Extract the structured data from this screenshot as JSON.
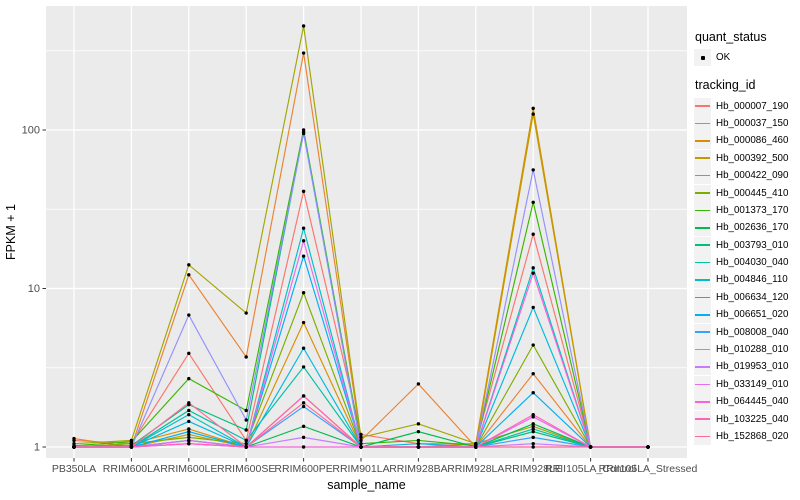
{
  "figure": {
    "background": "#FFFFFF",
    "panel_background": "#EBEBEB",
    "grid_color": "#FFFFFF",
    "axis_text_color": "#4D4D4D",
    "axis_title_color": "#000000",
    "point_color": "#000000",
    "legend_key_background": "#F2F2F2"
  },
  "legend": {
    "quant_status_title": "quant_status",
    "quant_status_items": [
      {
        "label": "OK",
        "shape": "point"
      }
    ],
    "tracking_id_title": "tracking_id"
  },
  "chart_data": {
    "type": "line",
    "title": "",
    "xlabel": "sample_name",
    "ylabel": "FPKM + 1",
    "y_scale": "log10",
    "ylim": [
      1,
      460
    ],
    "grid": true,
    "legend_position": "right",
    "y_ticks": [
      1,
      10,
      100
    ],
    "y_minor_ticks": [
      3.162,
      31.62,
      316.2
    ],
    "categories": [
      "PB350LA",
      "RRIM600LA",
      "RRIM600LE",
      "RRIM600SE",
      "RRIM600PE",
      "RRIM901LA",
      "RRIM928BA",
      "RRIM928LA",
      "RRIM928LE",
      "RRII105LA_Control",
      "RRII105LA_Stressed"
    ],
    "series": [
      {
        "name": "Hb_000007_190",
        "color": "#F8766D",
        "values": [
          1.1,
          1.05,
          3.9,
          1.1,
          41,
          1.2,
          1.05,
          1.05,
          22,
          1.0,
          1.0
        ]
      },
      {
        "name": "Hb_000037_150",
        "color": "#EA8331",
        "values": [
          1.13,
          1.0,
          12.2,
          3.7,
          306,
          1.1,
          2.5,
          1.0,
          2.9,
          1.0,
          1.0
        ]
      },
      {
        "name": "Hb_000086_460",
        "color": "#D89000",
        "values": [
          1.0,
          1.05,
          1.3,
          1.0,
          6.1,
          1.0,
          1.0,
          1.05,
          137,
          1.0,
          1.0
        ]
      },
      {
        "name": "Hb_000392_500",
        "color": "#C09B00",
        "values": [
          1.0,
          1.0,
          1.2,
          1.0,
          2.1,
          1.0,
          1.0,
          1.0,
          126,
          1.0,
          1.0
        ]
      },
      {
        "name": "Hb_000422_090",
        "color": "#A3A500",
        "values": [
          1.05,
          1.1,
          14.1,
          7.0,
          453,
          1.15,
          1.4,
          1.05,
          1.35,
          1.0,
          1.0
        ]
      },
      {
        "name": "Hb_000445_410",
        "color": "#7CAE00",
        "values": [
          1.0,
          1.05,
          1.15,
          1.05,
          9.4,
          1.0,
          1.0,
          1.0,
          4.4,
          1.0,
          1.0
        ]
      },
      {
        "name": "Hb_001373_170",
        "color": "#39B600",
        "values": [
          1.02,
          1.08,
          2.7,
          1.7,
          100,
          1.05,
          1.1,
          1.02,
          35,
          1.0,
          1.0
        ]
      },
      {
        "name": "Hb_002636_170",
        "color": "#00BB4E",
        "values": [
          1.0,
          1.0,
          1.1,
          1.0,
          1.35,
          1.0,
          1.25,
          1.0,
          1.4,
          1.0,
          1.0
        ]
      },
      {
        "name": "Hb_003793_010",
        "color": "#00BF7D",
        "values": [
          1.0,
          1.02,
          1.85,
          1.28,
          97,
          1.0,
          1.0,
          1.0,
          1.25,
          1.0,
          1.0
        ]
      },
      {
        "name": "Hb_004030_040",
        "color": "#00C1A3",
        "values": [
          1.0,
          1.0,
          1.7,
          1.1,
          3.2,
          1.0,
          1.0,
          1.0,
          1.3,
          1.0,
          1.0
        ]
      },
      {
        "name": "Hb_004846_110",
        "color": "#00BFC4",
        "values": [
          1.0,
          1.0,
          1.6,
          1.0,
          24,
          1.0,
          1.0,
          1.0,
          13.5,
          1.0,
          1.0
        ]
      },
      {
        "name": "Hb_006634_120",
        "color": "#00BAE0",
        "values": [
          1.0,
          1.0,
          1.45,
          1.0,
          4.2,
          1.0,
          1.05,
          1.0,
          7.6,
          1.0,
          1.0
        ]
      },
      {
        "name": "Hb_006651_020",
        "color": "#00B0F6",
        "values": [
          1.0,
          1.0,
          1.25,
          1.0,
          16,
          1.0,
          1.0,
          1.0,
          2.2,
          1.0,
          1.0
        ]
      },
      {
        "name": "Hb_008008_040",
        "color": "#35A2FF",
        "values": [
          1.0,
          1.0,
          1.1,
          1.0,
          1.8,
          1.0,
          1.0,
          1.0,
          1.15,
          1.0,
          1.0
        ]
      },
      {
        "name": "Hb_010288_010",
        "color": "#9590FF",
        "values": [
          1.0,
          1.0,
          6.8,
          1.48,
          95,
          1.0,
          1.0,
          1.0,
          56,
          1.0,
          1.0
        ]
      },
      {
        "name": "Hb_019953_010",
        "color": "#C77CFF",
        "values": [
          1.0,
          1.0,
          1.05,
          1.0,
          1.15,
          1.0,
          1.0,
          1.0,
          1.05,
          1.0,
          1.0
        ]
      },
      {
        "name": "Hb_033149_010",
        "color": "#E76BF3",
        "values": [
          1.0,
          1.0,
          1.1,
          1.0,
          20,
          1.0,
          1.0,
          1.0,
          1.55,
          1.0,
          1.0
        ]
      },
      {
        "name": "Hb_064445_040",
        "color": "#FA62DB",
        "values": [
          1.0,
          1.0,
          1.05,
          1.0,
          1.0,
          1.0,
          1.0,
          1.0,
          12.5,
          1.0,
          1.0
        ]
      },
      {
        "name": "Hb_103225_040",
        "color": "#FF62BC",
        "values": [
          1.0,
          1.0,
          1.05,
          1.0,
          2.1,
          1.0,
          1.0,
          1.0,
          1.6,
          1.0,
          1.0
        ]
      },
      {
        "name": "Hb_152868_020",
        "color": "#FF6A98",
        "values": [
          1.0,
          1.0,
          1.9,
          1.0,
          1.9,
          1.0,
          1.0,
          1.0,
          1.0,
          1.0,
          1.0
        ]
      }
    ]
  }
}
